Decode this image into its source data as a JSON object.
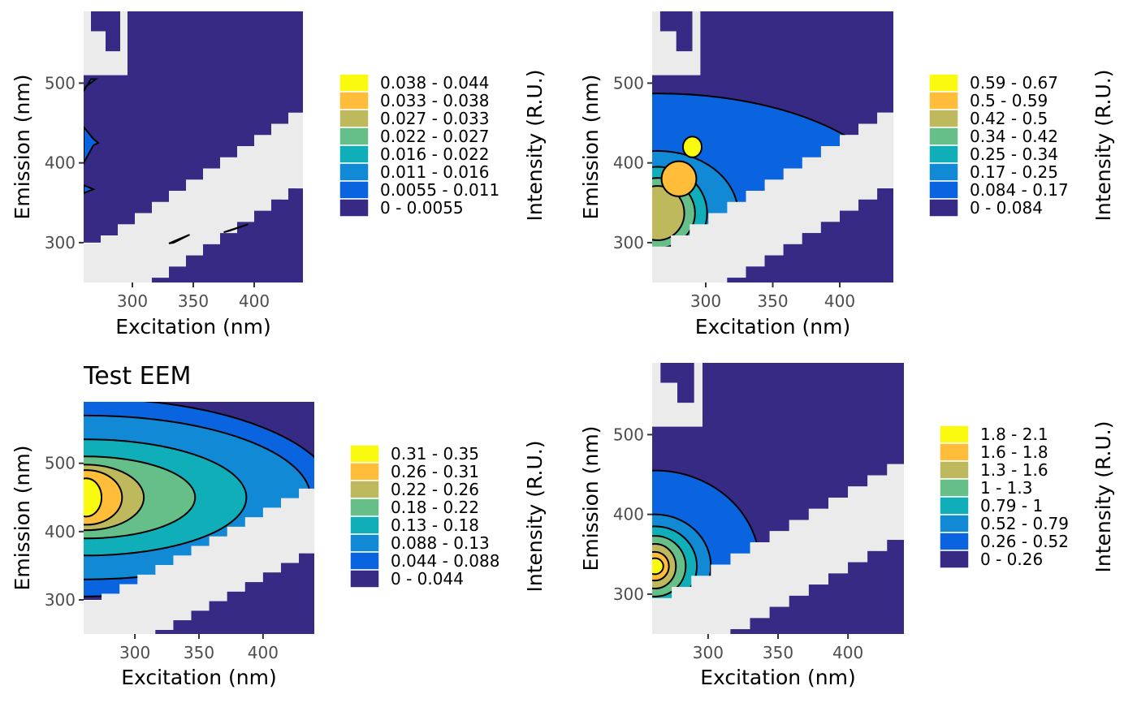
{
  "palette": [
    "#362A85",
    "#0A64E0",
    "#1189D4",
    "#10AEB8",
    "#66BF88",
    "#BDB95C",
    "#FFBD3A",
    "#F9FA0F"
  ],
  "background": "#EBEBEB",
  "chart_data": [
    {
      "type": "contour",
      "title": "",
      "xlabel": "Excitation (nm)",
      "ylabel": "Emission (nm)",
      "legend_title": "Intensity (R.U.)",
      "xlim": [
        260,
        440
      ],
      "ylim": [
        250,
        590
      ],
      "xticks": [
        300,
        350,
        400
      ],
      "yticks": [
        300,
        400,
        500
      ],
      "legend": [
        "0.038 - 0.044",
        "0.033 - 0.038",
        "0.027 - 0.033",
        "0.022 - 0.027",
        "0.016 - 0.022",
        "0.011 - 0.016",
        "0.0055 - 0.011",
        "0 - 0.0055"
      ],
      "highlights": [
        {
          "level": 1,
          "poly": [
            [
              260,
              400
            ],
            [
              268,
              422
            ],
            [
              272,
              425
            ],
            [
              268,
              430
            ],
            [
              260,
              445
            ]
          ]
        },
        {
          "level": 1,
          "poly": [
            [
              260,
              372
            ],
            [
              268,
              367
            ],
            [
              260,
              362
            ]
          ]
        },
        {
          "level": 1,
          "poly": [
            [
              260,
              490
            ],
            [
              266,
              505
            ],
            [
              270,
              505
            ],
            [
              262,
              496
            ]
          ]
        },
        {
          "level": 1,
          "poly": [
            [
              330,
              299
            ],
            [
              334,
              300
            ],
            [
              347,
              310
            ],
            [
              336,
              303
            ]
          ]
        },
        {
          "level": 1,
          "poly": [
            [
              375,
              313
            ],
            [
              395,
              323
            ],
            [
              380,
              315
            ]
          ]
        }
      ]
    },
    {
      "type": "contour",
      "title": "",
      "xlabel": "Excitation (nm)",
      "ylabel": "Emission (nm)",
      "legend_title": "Intensity (R.U.)",
      "xlim": [
        260,
        440
      ],
      "ylim": [
        250,
        590
      ],
      "xticks": [
        300,
        350,
        400
      ],
      "yticks": [
        300,
        400,
        500
      ],
      "legend": [
        "0.59 - 0.67",
        "0.5 - 0.59",
        "0.42 - 0.5",
        "0.34 - 0.42",
        "0.25 - 0.34",
        "0.17 - 0.25",
        "0.084 - 0.17",
        "0 - 0.084"
      ],
      "centers": [
        [
          264,
          337
        ],
        [
          264,
          337
        ],
        [
          264,
          337
        ],
        [
          264,
          337
        ],
        [
          264,
          337
        ],
        [
          280,
          380
        ],
        [
          290,
          420
        ]
      ],
      "rx": [
        184,
        60,
        37,
        28,
        20,
        13,
        7
      ],
      "ry": [
        150,
        78,
        58,
        44,
        34,
        22,
        13
      ]
    },
    {
      "type": "contour",
      "title": "Test EEM",
      "xlabel": "Excitation (nm)",
      "ylabel": "Emission (nm)",
      "legend_title": "Intensity (R.U.)",
      "xlim": [
        260,
        440
      ],
      "ylim": [
        250,
        590
      ],
      "xticks": [
        300,
        350,
        400
      ],
      "yticks": [
        300,
        400,
        500
      ],
      "legend": [
        "0.31 - 0.35",
        "0.26 - 0.31",
        "0.22 - 0.26",
        "0.18 - 0.22",
        "0.13 - 0.18",
        "0.088 - 0.13",
        "0.044 - 0.088",
        "0 - 0.044"
      ],
      "centers": [
        [
          262,
          450
        ],
        [
          262,
          450
        ],
        [
          262,
          450
        ],
        [
          262,
          450
        ],
        [
          262,
          450
        ],
        [
          262,
          450
        ],
        [
          262,
          450
        ]
      ],
      "rx": [
        195,
        175,
        125,
        85,
        45,
        28,
        12
      ],
      "ry": [
        145,
        120,
        85,
        60,
        48,
        40,
        28
      ]
    },
    {
      "type": "contour",
      "title": "",
      "xlabel": "Excitation (nm)",
      "ylabel": "Emission (nm)",
      "legend_title": "Intensity (R.U.)",
      "xlim": [
        260,
        440
      ],
      "ylim": [
        250,
        590
      ],
      "xticks": [
        300,
        350,
        400
      ],
      "yticks": [
        300,
        400,
        500
      ],
      "legend": [
        "1.8 - 2.1",
        "1.6 - 1.8",
        "1.3 - 1.6",
        "1 - 1.3",
        "0.79 - 1",
        "0.52 - 0.79",
        "0.26 - 0.52",
        "0 - 0.26"
      ],
      "centers": [
        [
          262,
          335
        ],
        [
          262,
          335
        ],
        [
          262,
          335
        ],
        [
          262,
          335
        ],
        [
          262,
          335
        ],
        [
          262,
          335
        ],
        [
          262,
          335
        ]
      ],
      "rx": [
        75,
        40,
        30,
        22,
        15,
        10,
        6
      ],
      "ry": [
        120,
        65,
        50,
        38,
        28,
        18,
        10
      ]
    }
  ]
}
